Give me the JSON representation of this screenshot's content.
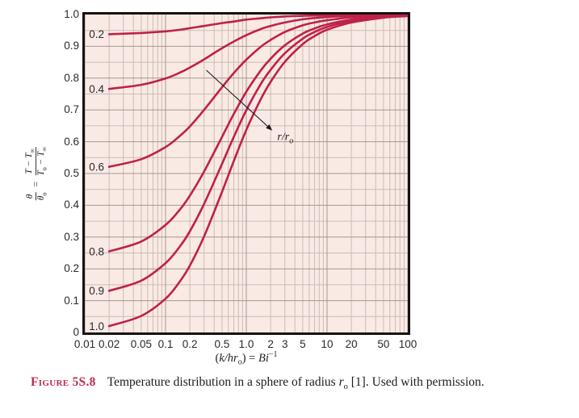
{
  "colors": {
    "plot_bg": "#f9eae5",
    "grid_minor": "#cdbcb6",
    "grid_major": "#a89690",
    "curve": "#c0204a",
    "border": "#181212",
    "text": "#2a2a2a",
    "caption_label": "#bf2a50",
    "arrow": "#1a1a1a"
  },
  "chart_data": {
    "type": "line",
    "title": "",
    "xlabel": "(k/hr_o) = Bi^-1",
    "ylabel": "theta/theta_o = (T - T_inf)/(T_o - T_inf)",
    "x_scale": "log",
    "xlim": [
      0.01,
      100
    ],
    "ylim": [
      0,
      1.0
    ],
    "grid": true,
    "legend_note": "curves labeled with r/r_o",
    "x": [
      0.01,
      0.02,
      0.05,
      0.1,
      0.15,
      0.2,
      0.3,
      0.5,
      0.7,
      1,
      1.5,
      2,
      3,
      5,
      7,
      10,
      20,
      50,
      100
    ],
    "series": [
      {
        "name": "0.2",
        "values": [
          0.937,
          0.938,
          0.942,
          0.947,
          0.952,
          0.957,
          0.964,
          0.973,
          0.978,
          0.984,
          0.988,
          0.991,
          0.994,
          0.996,
          0.997,
          0.998,
          0.999,
          1.0,
          1.0
        ]
      },
      {
        "name": "0.4",
        "values": [
          0.761,
          0.766,
          0.779,
          0.799,
          0.817,
          0.833,
          0.859,
          0.894,
          0.915,
          0.935,
          0.954,
          0.964,
          0.975,
          0.985,
          0.989,
          0.992,
          0.996,
          0.998,
          0.999
        ]
      },
      {
        "name": "0.6",
        "values": [
          0.513,
          0.521,
          0.545,
          0.583,
          0.618,
          0.648,
          0.7,
          0.771,
          0.816,
          0.858,
          0.898,
          0.92,
          0.945,
          0.966,
          0.975,
          0.982,
          0.991,
          0.996,
          0.998
        ]
      },
      {
        "name": "0.8",
        "values": [
          0.244,
          0.255,
          0.286,
          0.338,
          0.386,
          0.43,
          0.506,
          0.615,
          0.687,
          0.757,
          0.823,
          0.861,
          0.903,
          0.94,
          0.956,
          0.969,
          0.984,
          0.994,
          0.997
        ]
      },
      {
        "name": "0.9",
        "values": [
          0.12,
          0.131,
          0.163,
          0.218,
          0.27,
          0.318,
          0.404,
          0.53,
          0.615,
          0.699,
          0.78,
          0.826,
          0.878,
          0.924,
          0.945,
          0.961,
          0.98,
          0.992,
          0.996
        ]
      },
      {
        "name": "1.0",
        "values": [
          0.01,
          0.02,
          0.052,
          0.106,
          0.16,
          0.21,
          0.302,
          0.442,
          0.539,
          0.637,
          0.732,
          0.788,
          0.851,
          0.907,
          0.932,
          0.952,
          0.975,
          0.99,
          0.995
        ]
      }
    ],
    "x_ticks": [
      {
        "v": 0.01,
        "label": "0.01"
      },
      {
        "v": 0.02,
        "label": "0.02"
      },
      {
        "v": 0.05,
        "label": "0.05"
      },
      {
        "v": 0.1,
        "label": "0.1"
      },
      {
        "v": 0.2,
        "label": "0.2"
      },
      {
        "v": 0.5,
        "label": "0.5"
      },
      {
        "v": 1,
        "label": "1.0"
      },
      {
        "v": 2,
        "label": "2"
      },
      {
        "v": 3,
        "label": "3"
      },
      {
        "v": 5,
        "label": "5"
      },
      {
        "v": 10,
        "label": "10"
      },
      {
        "v": 20,
        "label": "20"
      },
      {
        "v": 50,
        "label": "50"
      },
      {
        "v": 100,
        "label": "100"
      }
    ],
    "y_ticks": [
      {
        "v": 1,
        "label": "1.0"
      },
      {
        "v": 0.9,
        "label": "0.9"
      },
      {
        "v": 0.8,
        "label": "0.8"
      },
      {
        "v": 0.7,
        "label": "0.7"
      },
      {
        "v": 0.6,
        "label": "0.6"
      },
      {
        "v": 0.5,
        "label": "0.5"
      },
      {
        "v": 0.4,
        "label": "0.4"
      },
      {
        "v": 0.3,
        "label": "0.3"
      },
      {
        "v": 0.2,
        "label": "0.2"
      },
      {
        "v": 0.1,
        "label": "0.1"
      },
      {
        "v": 0,
        "label": "0"
      }
    ],
    "curve_label_x": 0.0113,
    "curve_draw_from_x": 0.019,
    "annotation": {
      "label_base": "r/r",
      "label_sub": "o",
      "arrow_tail": [
        0.32,
        0.825
      ],
      "arrow_head": [
        2.1,
        0.635
      ],
      "label_pos": [
        2.42,
        0.605
      ]
    }
  },
  "x_axis_label": {
    "open": "(",
    "vars": "k/hr",
    "sub": "o",
    "close": ") = ",
    "bi": "Bi",
    "exp": "−1"
  },
  "y_axis_label": {
    "lhs_num": "θ",
    "lhs_den_base": "θ",
    "lhs_den_sub": "o",
    "eq": "=",
    "rhs_num_a": "T − T",
    "rhs_num_sub": "∞",
    "rhs_den_a": "T",
    "rhs_den_sub1": "o",
    "rhs_den_b": " − T",
    "rhs_den_sub2": "∞"
  },
  "caption": {
    "label": "Figure 5S.8",
    "body": "Temperature distribution in a sphere of radius ",
    "var_base": "r",
    "var_sub": "o",
    "tail": " [1]. Used with permission."
  }
}
